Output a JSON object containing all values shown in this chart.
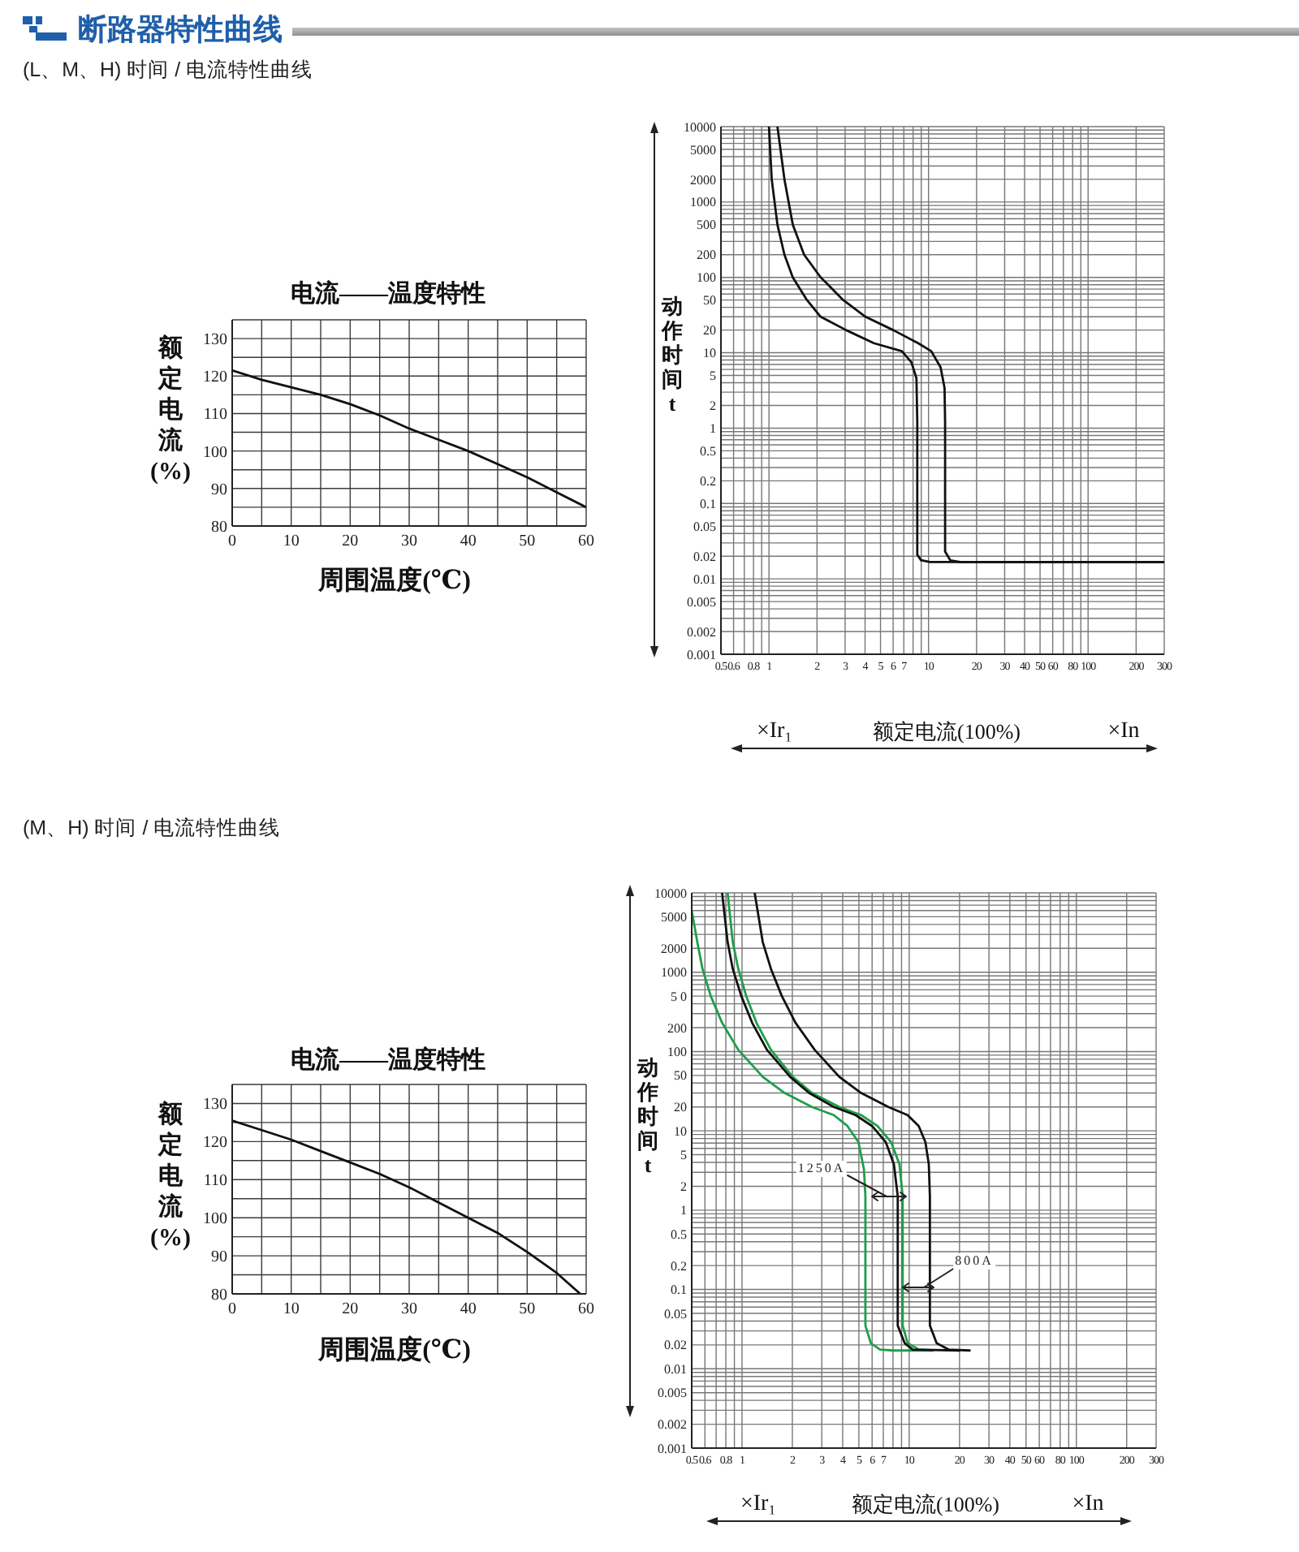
{
  "chart_data": [
    {
      "type": "line",
      "title": "电流——温度特性",
      "xlabel": "周围温度(℃)",
      "ylabel": "额定电流(%)",
      "annotations": [
        "断路器特性曲线",
        "(L、M、H) 时间 / 电流特性曲线"
      ],
      "x": [
        0,
        5,
        10,
        15,
        20,
        25,
        30,
        35,
        40,
        45,
        50,
        55,
        60
      ],
      "series": [
        {
          "color": "#111111",
          "values": [
            121.5,
            119,
            117,
            115,
            112.5,
            109.5,
            106,
            103,
            100,
            96.5,
            93,
            89,
            85
          ]
        }
      ],
      "xlim": [
        0,
        60
      ],
      "ylim": [
        80,
        135
      ],
      "xticks": [
        0,
        {
          "value": 5,
          "label": null
        },
        10,
        {
          "value": 15,
          "label": null
        },
        20,
        {
          "value": 25,
          "label": null
        },
        30,
        {
          "value": 35,
          "label": null
        },
        40,
        {
          "value": 45,
          "label": null
        },
        50,
        {
          "value": 55,
          "label": null
        },
        60
      ],
      "yticks": [
        80,
        {
          "value": 85,
          "label": null
        },
        90,
        {
          "value": 95,
          "label": null
        },
        100,
        {
          "value": 105,
          "label": null
        },
        110,
        {
          "value": 115,
          "label": null
        },
        120,
        {
          "value": 125,
          "label": null
        },
        130,
        {
          "value": 135,
          "label": null
        }
      ],
      "grid": true
    },
    {
      "type": "line",
      "xlabel": "额定电流(100%)",
      "ylabel": "动作时间t",
      "annotations": [
        "×Ir₁",
        "×In"
      ],
      "series": [
        {
          "color": "#111111",
          "x": [
            1,
            1.04,
            1.13,
            1.25,
            1.41,
            1.73,
            2.11,
            3.04,
            4.54,
            6.8,
            7.8,
            8.4,
            8.5,
            8.5,
            8.97,
            10.2,
            300
          ],
          "values": [
            10000,
            2000,
            500,
            200,
            100,
            50,
            30,
            20,
            13.4,
            10.5,
            7.5,
            4.6,
            1.2,
            0.021,
            0.0177,
            0.0167,
            0.0167
          ]
        },
        {
          "color": "#111111",
          "x": [
            1.13,
            1.25,
            1.41,
            1.66,
            2.11,
            2.92,
            4.03,
            6.0,
            8.6,
            10.4,
            11.9,
            12.6,
            12.7,
            12.7,
            13.7,
            15.8,
            300
          ],
          "values": [
            10000,
            2000,
            500,
            200,
            100,
            50,
            30,
            20,
            13.4,
            10.5,
            6.4,
            3.4,
            1.2,
            0.023,
            0.0176,
            0.0167,
            0.0167
          ]
        }
      ],
      "log": "xy",
      "xlim": [
        0.5,
        300
      ],
      "ylim": [
        0.001,
        10000
      ],
      "xticks": [
        0.5,
        0.6,
        {
          "value": 0.7,
          "label": null
        },
        0.8,
        {
          "value": 0.9,
          "label": null
        },
        1,
        2,
        3,
        4,
        5,
        6,
        7,
        {
          "value": 8,
          "label": null
        },
        {
          "value": 9,
          "label": null
        },
        10,
        20,
        30,
        40,
        50,
        60,
        {
          "value": 70,
          "label": null
        },
        80,
        {
          "value": 90,
          "label": null
        },
        100,
        200,
        300
      ],
      "yticks": [
        0.001,
        0.002,
        {
          "value": 0.003,
          "label": null
        },
        {
          "value": 0.004,
          "label": null
        },
        0.005,
        {
          "value": 0.006,
          "label": null
        },
        {
          "value": 0.007,
          "label": null
        },
        {
          "value": 0.008,
          "label": null
        },
        {
          "value": 0.009,
          "label": null
        },
        0.01,
        0.02,
        {
          "value": 0.03,
          "label": null
        },
        {
          "value": 0.04,
          "label": null
        },
        0.05,
        {
          "value": 0.06,
          "label": null
        },
        {
          "value": 0.07,
          "label": null
        },
        {
          "value": 0.08,
          "label": null
        },
        {
          "value": 0.09,
          "label": null
        },
        0.1,
        0.2,
        {
          "value": 0.3,
          "label": null
        },
        {
          "value": 0.4,
          "label": null
        },
        0.5,
        {
          "value": 0.6,
          "label": null
        },
        {
          "value": 0.7,
          "label": null
        },
        {
          "value": 0.8,
          "label": null
        },
        {
          "value": 0.9,
          "label": null
        },
        1,
        2,
        {
          "value": 3,
          "label": null
        },
        {
          "value": 4,
          "label": null
        },
        5,
        {
          "value": 6,
          "label": null
        },
        {
          "value": 7,
          "label": null
        },
        {
          "value": 8,
          "label": null
        },
        {
          "value": 9,
          "label": null
        },
        10,
        20,
        {
          "value": 30,
          "label": null
        },
        {
          "value": 40,
          "label": null
        },
        50,
        {
          "value": 60,
          "label": null
        },
        {
          "value": 70,
          "label": null
        },
        {
          "value": 80,
          "label": null
        },
        {
          "value": 90,
          "label": null
        },
        100,
        200,
        {
          "value": 300,
          "label": null
        },
        {
          "value": 400,
          "label": null
        },
        500,
        {
          "value": 600,
          "label": null
        },
        {
          "value": 700,
          "label": null
        },
        {
          "value": 800,
          "label": null
        },
        {
          "value": 900,
          "label": null
        },
        1000,
        2000,
        {
          "value": 3000,
          "label": null
        },
        {
          "value": 4000,
          "label": null
        },
        5000,
        {
          "value": 6000,
          "label": null
        },
        {
          "value": 7000,
          "label": null
        },
        {
          "value": 8000,
          "label": null
        },
        {
          "value": 9000,
          "label": null
        },
        10000
      ],
      "grid": true
    },
    {
      "type": "line",
      "title": "电流——温度特性",
      "xlabel": "周围温度(℃)",
      "ylabel": "额定电流(%)",
      "annotations": [
        "(M、H) 时间 / 电流特性曲线"
      ],
      "x": [
        0,
        5,
        10,
        15,
        20,
        25,
        30,
        35,
        40,
        45,
        50,
        55,
        59
      ],
      "series": [
        {
          "color": "#111111",
          "values": [
            125.5,
            123,
            120.5,
            117.5,
            114.5,
            111.5,
            108,
            104,
            100,
            96,
            91,
            85.5,
            80
          ]
        }
      ],
      "xlim": [
        0,
        60
      ],
      "ylim": [
        80,
        135
      ],
      "xticks": [
        0,
        {
          "value": 5,
          "label": null
        },
        10,
        {
          "value": 15,
          "label": null
        },
        20,
        {
          "value": 25,
          "label": null
        },
        30,
        {
          "value": 35,
          "label": null
        },
        40,
        {
          "value": 45,
          "label": null
        },
        50,
        {
          "value": 55,
          "label": null
        },
        60
      ],
      "yticks": [
        80,
        {
          "value": 85,
          "label": null
        },
        90,
        {
          "value": 95,
          "label": null
        },
        100,
        {
          "value": 105,
          "label": null
        },
        110,
        {
          "value": 115,
          "label": null
        },
        120,
        {
          "value": 125,
          "label": null
        },
        130,
        {
          "value": 135,
          "label": null
        }
      ],
      "grid": true
    },
    {
      "type": "line",
      "xlabel": "额定电流(100%)",
      "ylabel": "动作时间t",
      "annotations": [
        "1250A",
        "800A",
        "×Ir₁",
        "×In"
      ],
      "series": [
        {
          "color": "#1f9e4a",
          "x": [
            0.5,
            0.54,
            0.58,
            0.65,
            0.76,
            0.95,
            1.33,
            1.8,
            2.62,
            3.54,
            4.27,
            4.97,
            5.36,
            5.47,
            5.47,
            5.9,
            6.7,
            8,
            13.8
          ],
          "values": [
            6000,
            2400,
            1100,
            500,
            230,
            105,
            48,
            30,
            20,
            15.8,
            11.5,
            7.2,
            3.3,
            1.5,
            0.035,
            0.021,
            0.0175,
            0.017,
            0.017
          ]
        },
        {
          "color": "#1f9e4a",
          "x": [
            0.82,
            0.88,
            0.95,
            1.06,
            1.22,
            1.49,
            2.01,
            2.62,
            3.82,
            5.16,
            6.46,
            7.8,
            8.74,
            9.14,
            9.14,
            9.8,
            11.4,
            13.8
          ],
          "values": [
            10000,
            2400,
            1100,
            500,
            230,
            105,
            48,
            30,
            20,
            15.8,
            11.5,
            7.2,
            3.8,
            1.5,
            0.035,
            0.021,
            0.0175,
            0.017
          ]
        },
        {
          "color": "#111111",
          "x": [
            0.76,
            0.82,
            0.88,
            0.99,
            1.15,
            1.41,
            1.94,
            2.52,
            3.54,
            4.78,
            6.0,
            7.24,
            8.1,
            8.54,
            8.54,
            9.4,
            10.5,
            20
          ],
          "values": [
            10000,
            2400,
            1100,
            500,
            230,
            105,
            48,
            30,
            20,
            15.8,
            11.5,
            7.2,
            3.8,
            1.5,
            0.035,
            0.021,
            0.0175,
            0.017
          ]
        },
        {
          "color": "#111111",
          "x": [
            1.19,
            1.33,
            1.49,
            1.73,
            2.09,
            2.72,
            3.82,
            5.16,
            7.51,
            9.78,
            11.4,
            12.5,
            13.1,
            13.3,
            13.3,
            14.6,
            17.2,
            23
          ],
          "values": [
            10000,
            2400,
            1100,
            500,
            230,
            105,
            48,
            30,
            20,
            15.8,
            11.5,
            7.2,
            3.8,
            1.5,
            0.035,
            0.021,
            0.0175,
            0.017
          ]
        }
      ],
      "log": "xy",
      "xlim": [
        0.5,
        300
      ],
      "ylim": [
        0.001,
        10000
      ],
      "xticks": [
        0.5,
        0.6,
        {
          "value": 0.7,
          "label": null
        },
        0.8,
        {
          "value": 0.9,
          "label": null
        },
        1,
        2,
        3,
        4,
        5,
        6,
        7,
        {
          "value": 8,
          "label": null
        },
        {
          "value": 9,
          "label": null
        },
        10,
        20,
        30,
        40,
        50,
        60,
        {
          "value": 70,
          "label": null
        },
        80,
        {
          "value": 90,
          "label": null
        },
        100,
        200,
        300
      ],
      "yticks": [
        0.001,
        0.002,
        {
          "value": 0.003,
          "label": null
        },
        {
          "value": 0.004,
          "label": null
        },
        0.005,
        {
          "value": 0.006,
          "label": null
        },
        {
          "value": 0.007,
          "label": null
        },
        {
          "value": 0.008,
          "label": null
        },
        {
          "value": 0.009,
          "label": null
        },
        0.01,
        0.02,
        {
          "value": 0.03,
          "label": null
        },
        {
          "value": 0.04,
          "label": null
        },
        0.05,
        {
          "value": 0.06,
          "label": null
        },
        {
          "value": 0.07,
          "label": null
        },
        {
          "value": 0.08,
          "label": null
        },
        {
          "value": 0.09,
          "label": null
        },
        0.1,
        0.2,
        {
          "value": 0.3,
          "label": null
        },
        {
          "value": 0.4,
          "label": null
        },
        0.5,
        {
          "value": 0.6,
          "label": null
        },
        {
          "value": 0.7,
          "label": null
        },
        {
          "value": 0.8,
          "label": null
        },
        {
          "value": 0.9,
          "label": null
        },
        1,
        2,
        {
          "value": 3,
          "label": null
        },
        {
          "value": 4,
          "label": null
        },
        5,
        {
          "value": 6,
          "label": null
        },
        {
          "value": 7,
          "label": null
        },
        {
          "value": 8,
          "label": null
        },
        {
          "value": 9,
          "label": null
        },
        10,
        20,
        {
          "value": 30,
          "label": null
        },
        {
          "value": 40,
          "label": null
        },
        50,
        {
          "value": 60,
          "label": null
        },
        {
          "value": 70,
          "label": null
        },
        {
          "value": 80,
          "label": null
        },
        {
          "value": 90,
          "label": null
        },
        100,
        200,
        {
          "value": 300,
          "label": null
        },
        {
          "value": 400,
          "label": null
        },
        {
          "value": 500,
          "label": "5 0"
        },
        {
          "value": 600,
          "label": null
        },
        {
          "value": 700,
          "label": null
        },
        {
          "value": 800,
          "label": null
        },
        {
          "value": 900,
          "label": null
        },
        1000,
        2000,
        {
          "value": 3000,
          "label": null
        },
        {
          "value": 4000,
          "label": null
        },
        5000,
        {
          "value": 6000,
          "label": null
        },
        {
          "value": 7000,
          "label": null
        },
        {
          "value": 8000,
          "label": null
        },
        {
          "value": 9000,
          "label": null
        },
        10000
      ],
      "grid": true
    }
  ]
}
